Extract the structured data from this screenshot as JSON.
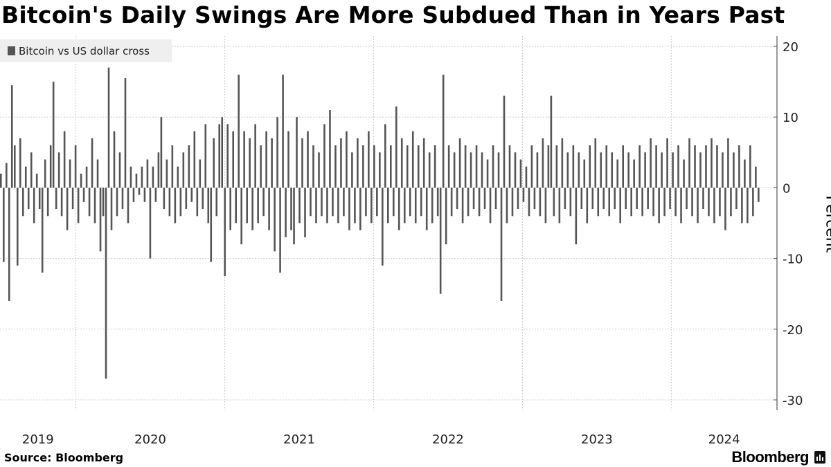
{
  "chart_data": {
    "type": "bar",
    "title": "Bitcoin's Daily Swings Are More Subdued Than in Years Past",
    "legend": [
      "Bitcoin vs US dollar cross"
    ],
    "legend_placement": "top-left",
    "ylabel": "Percent",
    "ylim": [
      -30,
      20
    ],
    "yticks": [
      20,
      10,
      0,
      -10,
      -20,
      -30
    ],
    "xlim": [
      2019.49,
      2024.71
    ],
    "x_start": 2019.49,
    "x_end": 2024.58,
    "xtick_labels": [
      "2019",
      "2020",
      "2021",
      "2022",
      "2023",
      "2024"
    ],
    "year_boundaries": [
      2020,
      2021,
      2022,
      2023,
      2024
    ],
    "grid": true,
    "color": "#555555",
    "series": [
      {
        "name": "Bitcoin vs US dollar cross",
        "values": [
          2,
          -10.5,
          3.5,
          -16,
          14.5,
          6,
          -11,
          7,
          -4,
          3,
          -3,
          5,
          -5,
          2,
          -3,
          -12,
          4,
          -4,
          6,
          15,
          -3,
          5,
          -4,
          8,
          -6,
          4,
          -3,
          6,
          -5,
          2,
          -2,
          3,
          -4,
          7,
          -5,
          4,
          -9,
          -4,
          -27,
          17,
          -6,
          8,
          -4,
          5,
          -3,
          15.5,
          -5,
          3,
          -2,
          2,
          -1,
          3,
          -2,
          4,
          -10,
          3,
          -2,
          5,
          10,
          -3,
          4,
          -4,
          6,
          -5,
          3,
          -4,
          5,
          -3,
          6,
          -2,
          8,
          -4,
          4,
          -3,
          9,
          -5,
          -10.5,
          7,
          -4,
          9,
          10,
          -12.5,
          9,
          -6,
          8,
          -5,
          16,
          -8,
          8,
          -5,
          7,
          -6,
          9,
          -5,
          6,
          -4,
          8,
          -6,
          7,
          -9,
          10,
          -12,
          16,
          -7,
          8,
          -6,
          -8,
          10,
          -5,
          7,
          -7,
          8,
          -4,
          6,
          -5,
          5,
          -4,
          9,
          -5,
          11,
          -4,
          6,
          -5,
          7,
          -4,
          8,
          -6,
          5,
          -5,
          7,
          -6,
          6,
          -4,
          8,
          -5,
          6,
          -4,
          5,
          -11,
          9,
          -5,
          6,
          -4,
          11.5,
          -6,
          7,
          -5,
          6,
          -4,
          8,
          -5,
          6,
          -4,
          7,
          -6,
          5,
          -5,
          6,
          -4,
          -15,
          16,
          -8,
          6,
          -4,
          5,
          -3,
          7,
          -5,
          6,
          -4,
          5,
          -3,
          6,
          -4,
          5,
          -3,
          4,
          -5,
          6,
          -3,
          5,
          -16,
          13,
          -5,
          6,
          -4,
          5,
          -3,
          4,
          -2,
          3,
          -4,
          6,
          -3,
          5,
          -4,
          7,
          -5,
          6,
          13,
          -4,
          6,
          -5,
          7,
          -3,
          5,
          -4,
          6,
          -8,
          5,
          -3,
          4,
          -5,
          6,
          -3,
          7,
          -4,
          5,
          -3,
          6,
          -4,
          5,
          -3,
          4,
          -5,
          6,
          -3,
          5,
          -4,
          4,
          -3,
          6,
          -4,
          5,
          -3,
          7,
          -4,
          6,
          -5,
          5,
          -4,
          7,
          -3,
          5,
          -4,
          6,
          -5,
          4,
          -3,
          7,
          -4,
          6,
          -5,
          5,
          -3,
          6,
          -4,
          7,
          -5,
          6,
          -4,
          5,
          -6,
          7,
          -4,
          5,
          -3,
          6,
          -5,
          4,
          -5,
          6,
          -4,
          3,
          -2
        ]
      }
    ]
  },
  "footer": {
    "source": "Source: Bloomberg",
    "brand": "Bloomberg"
  }
}
